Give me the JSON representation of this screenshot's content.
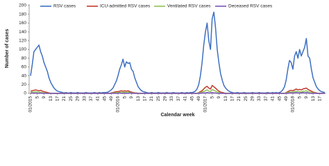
{
  "chart_data": {
    "type": "line",
    "y_label": "Number of cases",
    "x_label": "Calendar week",
    "categories": [
      "01/2015",
      null,
      null,
      null,
      "5",
      null,
      null,
      null,
      "9",
      null,
      null,
      null,
      "13",
      null,
      null,
      null,
      "17",
      null,
      null,
      null,
      "21",
      null,
      null,
      null,
      "25",
      null,
      null,
      null,
      "29",
      null,
      null,
      null,
      "33",
      null,
      null,
      null,
      "37",
      null,
      null,
      null,
      "41",
      null,
      null,
      null,
      "45",
      null,
      null,
      null,
      "49",
      null,
      null,
      null,
      "01/2016",
      null,
      null,
      null,
      "5",
      null,
      null,
      null,
      "9",
      null,
      null,
      null,
      "13",
      null,
      null,
      null,
      "17",
      null,
      null,
      null,
      "21",
      null,
      null,
      null,
      "25",
      null,
      null,
      null,
      "29",
      null,
      null,
      null,
      "33",
      null,
      null,
      null,
      "37",
      null,
      null,
      null,
      "41",
      null,
      null,
      null,
      "45",
      null,
      null,
      null,
      "49",
      null,
      null,
      null,
      "01/2017",
      null,
      null,
      null,
      "5",
      null,
      null,
      null,
      "9",
      null,
      null,
      null,
      "13",
      null,
      null,
      null,
      "17",
      null,
      null,
      null,
      "21",
      null,
      null,
      null,
      "25",
      null,
      null,
      null,
      "29",
      null,
      null,
      null,
      "33",
      null,
      null,
      null,
      "37",
      null,
      null,
      null,
      "41",
      null,
      null,
      null,
      "45",
      null,
      null,
      null,
      "49",
      null,
      null,
      null,
      "01/2018",
      null,
      null,
      null,
      "5",
      null,
      null,
      null,
      "9",
      null,
      null,
      null,
      "13",
      null,
      null,
      null,
      "17",
      null,
      null,
      null
    ],
    "series": [
      {
        "name": "RSV cases",
        "color": "#3d6fc2",
        "values": [
          40,
          65,
          95,
          100,
          105,
          110,
          95,
          85,
          70,
          60,
          50,
          35,
          25,
          18,
          12,
          8,
          5,
          4,
          3,
          2,
          1,
          2,
          1,
          1,
          2,
          1,
          1,
          1,
          2,
          1,
          1,
          1,
          1,
          2,
          1,
          1,
          1,
          1,
          2,
          1,
          1,
          2,
          1,
          2,
          2,
          2,
          3,
          5,
          8,
          12,
          20,
          28,
          40,
          55,
          65,
          78,
          60,
          72,
          68,
          70,
          55,
          50,
          35,
          25,
          15,
          10,
          6,
          4,
          3,
          2,
          1,
          1,
          2,
          1,
          1,
          1,
          2,
          1,
          1,
          1,
          1,
          2,
          1,
          1,
          1,
          2,
          1,
          1,
          1,
          1,
          2,
          1,
          1,
          2,
          1,
          2,
          2,
          3,
          5,
          10,
          20,
          40,
          70,
          110,
          140,
          160,
          120,
          100,
          170,
          185,
          150,
          100,
          70,
          45,
          30,
          18,
          12,
          8,
          5,
          3,
          2,
          1,
          1,
          2,
          1,
          1,
          1,
          2,
          1,
          1,
          1,
          1,
          2,
          1,
          1,
          1,
          2,
          1,
          1,
          1,
          1,
          2,
          1,
          1,
          2,
          1,
          2,
          1,
          2,
          4,
          8,
          15,
          30,
          55,
          75,
          70,
          55,
          85,
          95,
          80,
          100,
          85,
          95,
          105,
          125,
          85,
          80,
          55,
          35,
          25,
          15,
          10,
          6,
          4,
          3,
          2
        ]
      },
      {
        "name": "ICU-admitted RSV cases",
        "color": "#c0392b",
        "values": [
          5,
          6,
          7,
          8,
          7,
          6,
          7,
          5,
          4,
          3,
          2,
          1,
          0,
          0,
          0,
          0,
          0,
          0,
          0,
          0,
          0,
          0,
          0,
          0,
          0,
          0,
          0,
          0,
          0,
          0,
          0,
          0,
          0,
          0,
          0,
          0,
          0,
          0,
          0,
          0,
          0,
          0,
          0,
          0,
          0,
          0,
          0,
          0,
          1,
          2,
          3,
          4,
          4,
          5,
          6,
          5,
          6,
          5,
          6,
          4,
          3,
          2,
          1,
          1,
          0,
          0,
          0,
          0,
          0,
          0,
          0,
          0,
          0,
          0,
          0,
          0,
          0,
          0,
          0,
          0,
          0,
          0,
          0,
          0,
          0,
          0,
          0,
          0,
          0,
          0,
          0,
          0,
          0,
          0,
          0,
          0,
          0,
          0,
          0,
          0,
          2,
          4,
          6,
          10,
          14,
          16,
          12,
          10,
          18,
          15,
          12,
          8,
          5,
          3,
          2,
          1,
          0,
          0,
          0,
          0,
          0,
          0,
          0,
          0,
          0,
          0,
          0,
          0,
          0,
          0,
          0,
          0,
          0,
          0,
          0,
          0,
          0,
          0,
          0,
          0,
          0,
          0,
          0,
          0,
          0,
          0,
          0,
          0,
          0,
          0,
          0,
          0,
          2,
          4,
          6,
          7,
          6,
          8,
          10,
          8,
          9,
          8,
          10,
          11,
          12,
          9,
          7,
          5,
          3,
          2,
          1,
          0,
          0,
          0,
          0,
          0
        ]
      },
      {
        "name": "Ventilated RSV cases",
        "color": "#8dc153",
        "values": [
          2,
          3,
          3,
          4,
          3,
          3,
          2,
          2,
          1,
          1,
          0,
          0,
          0,
          0,
          0,
          0,
          0,
          0,
          0,
          0,
          0,
          0,
          0,
          0,
          0,
          0,
          0,
          0,
          0,
          0,
          0,
          0,
          0,
          0,
          0,
          0,
          0,
          0,
          0,
          0,
          0,
          0,
          0,
          0,
          0,
          0,
          0,
          0,
          0,
          1,
          1,
          2,
          2,
          2,
          3,
          2,
          3,
          2,
          3,
          2,
          1,
          1,
          0,
          0,
          0,
          0,
          0,
          0,
          0,
          0,
          0,
          0,
          0,
          0,
          0,
          0,
          0,
          0,
          0,
          0,
          0,
          0,
          0,
          0,
          0,
          0,
          0,
          0,
          0,
          0,
          0,
          0,
          0,
          0,
          0,
          0,
          0,
          0,
          0,
          0,
          1,
          2,
          3,
          4,
          6,
          8,
          5,
          4,
          9,
          7,
          5,
          3,
          2,
          1,
          0,
          0,
          0,
          0,
          0,
          0,
          0,
          0,
          0,
          0,
          0,
          0,
          0,
          0,
          0,
          0,
          0,
          0,
          0,
          0,
          0,
          0,
          0,
          0,
          0,
          0,
          0,
          0,
          0,
          0,
          0,
          0,
          0,
          0,
          0,
          0,
          0,
          0,
          1,
          2,
          3,
          3,
          3,
          4,
          5,
          4,
          4,
          3,
          5,
          5,
          6,
          4,
          3,
          2,
          1,
          1,
          0,
          0,
          0,
          0,
          0,
          0
        ]
      },
      {
        "name": "Deceased RSV cases",
        "color": "#7b52b9",
        "values": [
          0,
          1,
          0,
          1,
          0,
          0,
          1,
          0,
          0,
          0,
          0,
          0,
          0,
          0,
          0,
          0,
          0,
          0,
          0,
          0,
          0,
          0,
          0,
          0,
          0,
          0,
          0,
          0,
          0,
          0,
          0,
          0,
          0,
          0,
          0,
          0,
          0,
          0,
          0,
          0,
          0,
          0,
          0,
          0,
          0,
          0,
          0,
          0,
          0,
          0,
          0,
          0,
          0,
          1,
          0,
          0,
          1,
          0,
          0,
          1,
          0,
          0,
          0,
          0,
          0,
          0,
          0,
          0,
          0,
          0,
          0,
          0,
          0,
          0,
          0,
          0,
          0,
          0,
          0,
          0,
          0,
          0,
          0,
          0,
          0,
          0,
          0,
          0,
          0,
          0,
          0,
          0,
          0,
          0,
          0,
          0,
          0,
          0,
          0,
          0,
          0,
          0,
          1,
          1,
          1,
          2,
          1,
          1,
          2,
          1,
          1,
          0,
          0,
          0,
          0,
          0,
          0,
          0,
          0,
          0,
          0,
          0,
          0,
          0,
          0,
          0,
          0,
          0,
          0,
          0,
          0,
          0,
          0,
          0,
          0,
          0,
          0,
          0,
          0,
          0,
          0,
          0,
          0,
          0,
          0,
          0,
          0,
          0,
          0,
          0,
          0,
          0,
          0,
          0,
          1,
          1,
          1,
          1,
          2,
          1,
          1,
          1,
          2,
          1,
          2,
          1,
          0,
          0,
          0,
          0,
          0,
          0,
          0,
          0,
          0,
          0
        ]
      }
    ],
    "ylim": [
      0,
      200
    ],
    "yticks": [
      0,
      20,
      40,
      60,
      80,
      100,
      120,
      140,
      160,
      180,
      200
    ],
    "legend": "top"
  }
}
